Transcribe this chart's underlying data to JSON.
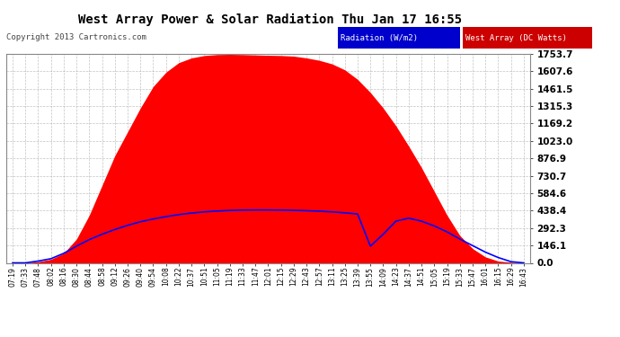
{
  "title": "West Array Power & Solar Radiation Thu Jan 17 16:55",
  "copyright": "Copyright 2013 Cartronics.com",
  "legend_radiation": "Radiation (W/m2)",
  "legend_west": "West Array (DC Watts)",
  "yticks": [
    0.0,
    146.1,
    292.3,
    438.4,
    584.6,
    730.7,
    876.9,
    1023.0,
    1169.2,
    1315.3,
    1461.5,
    1607.6,
    1753.7
  ],
  "ymax": 1753.7,
  "ymin": 0.0,
  "bg_color": "#ffffff",
  "plot_bg_color": "#ffffff",
  "red_fill_color": "#ff0000",
  "blue_line_color": "#0000ff",
  "grid_color": "#aaaaaa",
  "title_color": "#000000",
  "x_labels": [
    "07:19",
    "07:33",
    "07:48",
    "08:02",
    "08:16",
    "08:30",
    "08:44",
    "08:58",
    "09:12",
    "09:26",
    "09:40",
    "09:54",
    "10:08",
    "10:22",
    "10:37",
    "10:51",
    "11:05",
    "11:19",
    "11:33",
    "11:47",
    "12:01",
    "12:15",
    "12:29",
    "12:43",
    "12:57",
    "13:11",
    "13:25",
    "13:39",
    "13:55",
    "14:09",
    "14:23",
    "14:37",
    "14:51",
    "15:05",
    "15:19",
    "15:33",
    "15:47",
    "16:01",
    "16:15",
    "16:29",
    "16:43"
  ],
  "red_values": [
    0,
    0,
    10,
    30,
    80,
    200,
    400,
    650,
    900,
    1100,
    1300,
    1480,
    1600,
    1680,
    1720,
    1740,
    1748,
    1750,
    1748,
    1745,
    1742,
    1740,
    1735,
    1720,
    1700,
    1670,
    1620,
    1540,
    1430,
    1300,
    1150,
    980,
    800,
    600,
    400,
    230,
    120,
    50,
    15,
    5,
    0
  ],
  "blue_values": [
    0,
    0,
    15,
    35,
    80,
    140,
    195,
    240,
    280,
    315,
    345,
    368,
    388,
    405,
    418,
    428,
    435,
    440,
    443,
    444,
    444,
    443,
    441,
    438,
    434,
    428,
    420,
    410,
    140,
    240,
    350,
    375,
    350,
    310,
    260,
    200,
    145,
    90,
    45,
    10,
    0
  ]
}
